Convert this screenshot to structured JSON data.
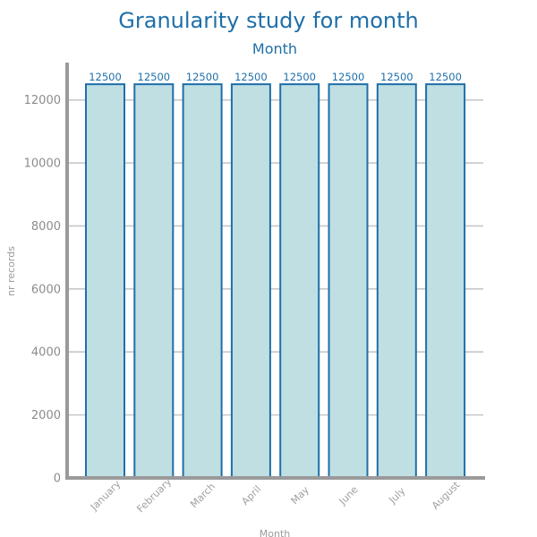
{
  "chart_data": {
    "type": "bar",
    "title": "Granularity study for month",
    "subtitle": "Month",
    "xlabel": "Month",
    "ylabel": "nr records",
    "categories": [
      "January",
      "February",
      "March",
      "April",
      "May",
      "June",
      "July",
      "August"
    ],
    "values": [
      12500,
      12500,
      12500,
      12500,
      12500,
      12500,
      12500,
      12500
    ],
    "ylim": [
      0,
      13100
    ],
    "yticks": [
      0,
      2000,
      4000,
      6000,
      8000,
      10000,
      12000
    ],
    "grid": true,
    "colors": {
      "bar_fill": "#bfdfe3",
      "bar_edge": "#1f6fa8",
      "text": "#1f6fa8",
      "axis": "#9a9a9a"
    }
  }
}
